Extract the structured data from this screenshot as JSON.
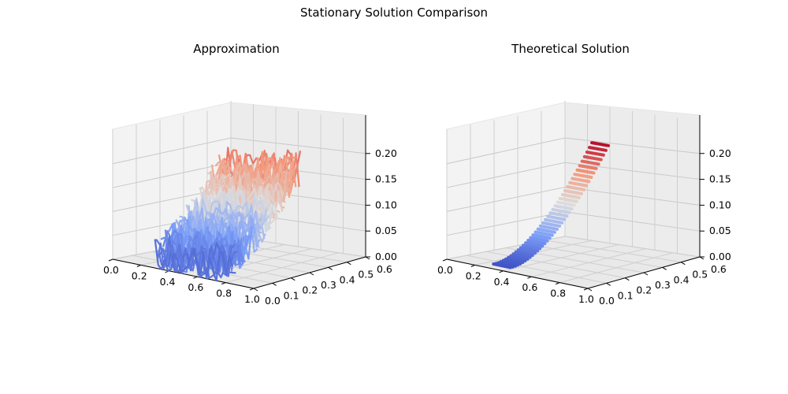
{
  "suptitle": "Stationary Solution Comparison",
  "colormap": "coolwarm",
  "colors": {
    "cool": "#3b4cc0",
    "neutral": "#dddddd",
    "warm": "#b40426"
  },
  "chart_data": [
    {
      "type": "surface3d",
      "title": "Approximation",
      "xlim": [
        0,
        1.0
      ],
      "ylim": [
        0,
        0.6
      ],
      "zlim": [
        0,
        0.24
      ],
      "x_ticks": [
        "0.0",
        "0.2",
        "0.4",
        "0.6",
        "0.8",
        "1.0"
      ],
      "y_ticks": [
        "0.0",
        "0.1",
        "0.2",
        "0.3",
        "0.4",
        "0.5",
        "0.6"
      ],
      "z_ticks": [
        "0.00",
        "0.05",
        "0.10",
        "0.15",
        "0.20"
      ],
      "grid": true,
      "surface": "noisy",
      "z_range_shown": [
        0,
        0.24
      ]
    },
    {
      "type": "surface3d",
      "title": "Theoretical Solution",
      "xlim": [
        0,
        1.0
      ],
      "ylim": [
        0,
        0.6
      ],
      "zlim": [
        0,
        0.24
      ],
      "x_ticks": [
        "0.0",
        "0.2",
        "0.4",
        "0.6",
        "0.8",
        "1.0"
      ],
      "y_ticks": [
        "0.0",
        "0.1",
        "0.2",
        "0.3",
        "0.4",
        "0.5",
        "0.6"
      ],
      "z_ticks": [
        "0.00",
        "0.05",
        "0.10",
        "0.15",
        "0.20"
      ],
      "grid": true,
      "surface": "smooth",
      "z_range_shown": [
        0,
        0.24
      ]
    }
  ]
}
